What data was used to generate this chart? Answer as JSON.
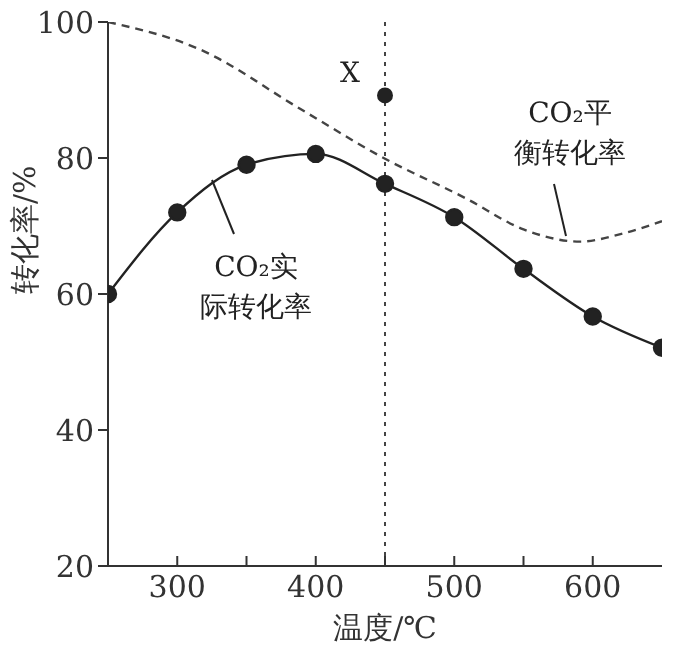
{
  "chart_data": {
    "type": "line",
    "xlabel": "温度/℃",
    "ylabel": "转化率/%",
    "xlim": [
      250,
      650
    ],
    "ylim": [
      20,
      100
    ],
    "xticks": [
      300,
      {
        "value": 350,
        "label": null
      },
      400,
      {
        "value": 450,
        "label": null
      },
      500,
      {
        "value": 550,
        "label": null
      },
      600
    ],
    "yticks": [
      20,
      40,
      60,
      80,
      100
    ],
    "marker": "circle",
    "series": [
      {
        "color": "#222222",
        "x": [
          250,
          300,
          350,
          400,
          450,
          500,
          550,
          600,
          650
        ],
        "values": [
          60,
          72,
          79,
          80.6,
          76.2,
          71.3,
          63.7,
          56.7,
          52.1
        ]
      },
      {
        "color": "#444444",
        "marker": "none",
        "line_style": "dashed",
        "x": [
          250,
          316,
          389,
          449,
          509,
          550,
          591,
          620,
          650
        ],
        "values": [
          100,
          96,
          87.2,
          80,
          74,
          69.5,
          67.7,
          68.8,
          70.7
        ]
      },
      {
        "type": "scatter",
        "color": "#222222",
        "x": [
          450
        ],
        "values": [
          89.2
        ]
      }
    ],
    "ref_lines": [
      {
        "axis": "x",
        "value": 450,
        "line_style": "dotted",
        "color": "#444444"
      }
    ],
    "annotations": [
      "X",
      "CO₂平衡转化率",
      "CO₂实际转化率"
    ]
  }
}
